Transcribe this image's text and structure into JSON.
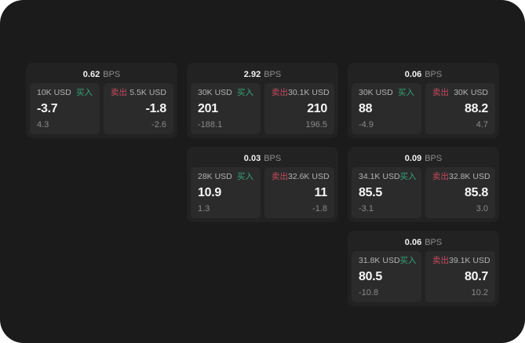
{
  "window": {
    "outside_bg": "#ffffff",
    "container_bg": "#1b1b1c"
  },
  "colors": {
    "buy": "#35a476",
    "sell": "#c64a5e",
    "card_bg": "#222223",
    "panel_bg": "#2b2b2c"
  },
  "labels": {
    "bps": "BPS",
    "buy": "买入",
    "sell": "卖出"
  },
  "cards": [
    {
      "row": 1,
      "col": 1,
      "bps": "0.62",
      "buy": {
        "amount": "10K USD",
        "price": "-3.7",
        "delta": "4.3"
      },
      "sell": {
        "amount": "5.5K USD",
        "price": "-1.8",
        "delta": "-2.6"
      }
    },
    {
      "row": 1,
      "col": 2,
      "bps": "2.92",
      "buy": {
        "amount": "30K USD",
        "price": "201",
        "delta": "-188.1"
      },
      "sell": {
        "amount": "30.1K USD",
        "price": "210",
        "delta": "196.5"
      }
    },
    {
      "row": 1,
      "col": 3,
      "bps": "0.06",
      "buy": {
        "amount": "30K USD",
        "price": "88",
        "delta": "-4.9"
      },
      "sell": {
        "amount": "30K USD",
        "price": "88.2",
        "delta": "4.7"
      }
    },
    {
      "row": 2,
      "col": 2,
      "bps": "0.03",
      "buy": {
        "amount": "28K USD",
        "price": "10.9",
        "delta": "1.3"
      },
      "sell": {
        "amount": "32.6K USD",
        "price": "11",
        "delta": "-1.8"
      }
    },
    {
      "row": 2,
      "col": 3,
      "bps": "0.09",
      "buy": {
        "amount": "34.1K USD",
        "price": "85.5",
        "delta": "-3.1"
      },
      "sell": {
        "amount": "32.8K USD",
        "price": "85.8",
        "delta": "3.0"
      }
    },
    {
      "row": 3,
      "col": 3,
      "bps": "0.06",
      "buy": {
        "amount": "31.8K USD",
        "price": "80.5",
        "delta": "-10.8"
      },
      "sell": {
        "amount": "39.1K USD",
        "price": "80.7",
        "delta": "10.2"
      }
    }
  ]
}
